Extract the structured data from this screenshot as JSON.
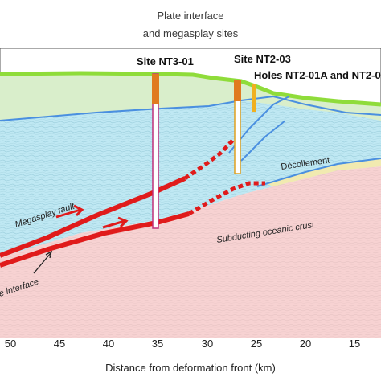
{
  "title": {
    "line1": "Plate interface",
    "line2": "and megasplay sites"
  },
  "sites": {
    "nt3_01": "Site NT3-01",
    "nt2_03": "Site NT2-03",
    "nt2_01": "Holes NT2-01A and NT2-0"
  },
  "labels": {
    "megasplay": "Megasplay fault",
    "decollement": "Décollement",
    "crust": "Subducting oceanic crust",
    "interface": "e interface"
  },
  "axis": {
    "xlabel": "Distance from deformation front (km)",
    "ticks": [
      "50",
      "45",
      "40",
      "35",
      "30",
      "25",
      "20",
      "15"
    ]
  },
  "colors": {
    "seafloor": "#8fdc3a",
    "slope": "#d9eecb",
    "water_sediment": "#bfe8f3",
    "oceanic_crust": "#f7d2d2",
    "fault": "#e01b1b",
    "blue_line": "#4a8fe0",
    "decollement_sand": "#f1eab0",
    "borehole_orange": "#e07a1f",
    "borehole_yellow": "#f0b020"
  }
}
